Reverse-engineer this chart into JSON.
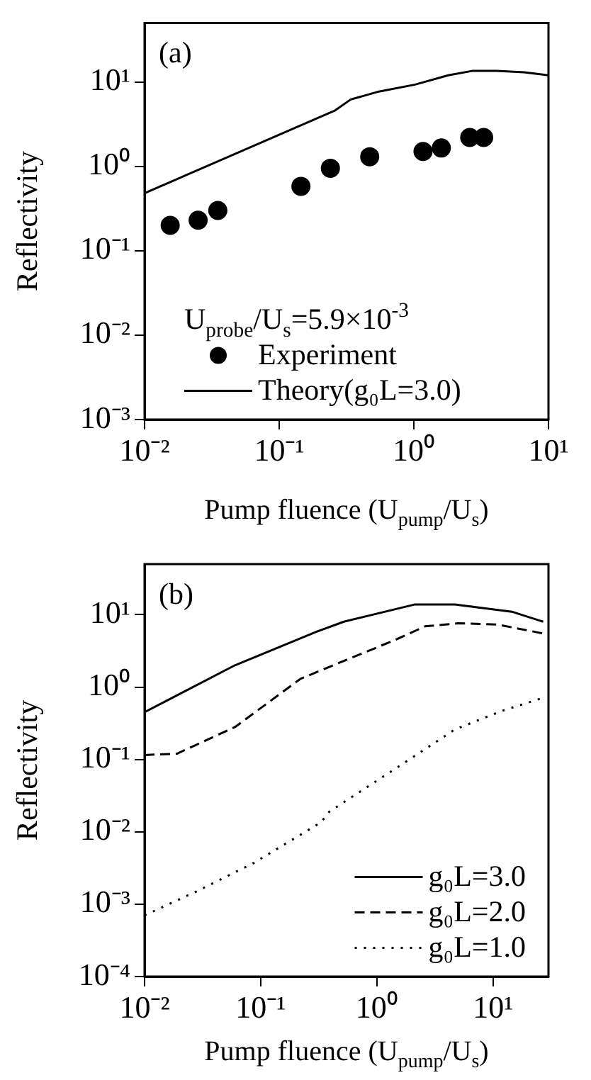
{
  "chart_data": [
    {
      "type": "line",
      "xlabel": "Pump fluence (U$_{pump}$/U$_{s}$)",
      "ylabel": "Reflectivity",
      "log": "xy",
      "legend": "bottom left",
      "legend_title": "U$_{probe}$/U$_{s}$=5.9×10$^{-3}$",
      "annotations": [
        "(a)"
      ],
      "xlim": [
        0.01,
        10
      ],
      "ylim": [
        0.001,
        50
      ],
      "xticks": [
        {
          "value": 0.01,
          "label": "10⁻²"
        },
        {
          "value": 0.1,
          "label": "10⁻¹"
        },
        {
          "value": 1,
          "label": "10⁰"
        },
        {
          "value": 10,
          "label": "10¹"
        }
      ],
      "yticks": [
        {
          "value": 0.001,
          "label": "10⁻³"
        },
        {
          "value": 0.01,
          "label": "10⁻²"
        },
        {
          "value": 0.1,
          "label": "10⁻¹"
        },
        {
          "value": 1,
          "label": "10⁰"
        },
        {
          "value": 10,
          "label": "10¹"
        }
      ],
      "series": [
        {
          "name": "Experiment",
          "type": "scatter",
          "marker": "circle",
          "color": "#000000",
          "x": [
            0.0155,
            0.025,
            0.035,
            0.145,
            0.24,
            0.47,
            1.17,
            1.6,
            2.6,
            3.3
          ],
          "values": [
            0.2,
            0.23,
            0.3,
            0.58,
            0.95,
            1.3,
            1.5,
            1.65,
            2.2,
            2.2
          ]
        },
        {
          "name": "Theory(g₀L=3.0)",
          "line_style": "solid",
          "color": "#000000",
          "x": [
            0.01,
            0.26,
            0.34,
            0.55,
            1.02,
            1.8,
            2.7,
            4.1,
            6.6,
            10
          ],
          "values": [
            0.48,
            4.6,
            6.2,
            7.7,
            9.3,
            12,
            13.5,
            13.5,
            13,
            12
          ]
        }
      ]
    },
    {
      "type": "line",
      "xlabel": "Pump fluence (U$_{pump}$/U$_{s}$)",
      "ylabel": "Reflectivity",
      "log": "xy",
      "legend": "bottom right",
      "annotations": [
        "(b)"
      ],
      "xlim": [
        0.01,
        30
      ],
      "ylim": [
        0.0001,
        50
      ],
      "xticks": [
        {
          "value": 0.01,
          "label": "10⁻²"
        },
        {
          "value": 0.1,
          "label": "10⁻¹"
        },
        {
          "value": 1,
          "label": "10⁰"
        },
        {
          "value": 10,
          "label": "10¹"
        }
      ],
      "yticks": [
        {
          "value": 0.0001,
          "label": "10⁻⁴"
        },
        {
          "value": 0.001,
          "label": "10⁻³"
        },
        {
          "value": 0.01,
          "label": "10⁻²"
        },
        {
          "value": 0.1,
          "label": "10⁻¹"
        },
        {
          "value": 1,
          "label": "10⁰"
        },
        {
          "value": 10,
          "label": "10¹"
        }
      ],
      "series": [
        {
          "name": "g₀L=3.0",
          "line_style": "solid",
          "color": "#000000",
          "x": [
            0.01,
            0.06,
            0.3,
            0.52,
            2.1,
            4.7,
            14.5,
            27
          ],
          "values": [
            0.45,
            2.0,
            5.8,
            8,
            13.8,
            13.8,
            11,
            8
          ]
        },
        {
          "name": "g₀L=2.0",
          "line_style": "dashed",
          "color": "#000000",
          "x": [
            0.01,
            0.019,
            0.06,
            0.22,
            0.52,
            1.4,
            2.6,
            5.0,
            11,
            27
          ],
          "values": [
            0.115,
            0.12,
            0.28,
            1.3,
            2.3,
            4.4,
            6.9,
            7.6,
            7.3,
            5.5
          ]
        },
        {
          "name": "g₀L=1.0",
          "line_style": "dotted",
          "color": "#000000",
          "x": [
            0.01,
            0.028,
            0.087,
            0.33,
            0.39,
            1.6,
            4.7,
            12,
            27
          ],
          "values": [
            0.0007,
            0.0015,
            0.0037,
            0.0135,
            0.019,
            0.083,
            0.26,
            0.47,
            0.71
          ]
        }
      ]
    }
  ]
}
